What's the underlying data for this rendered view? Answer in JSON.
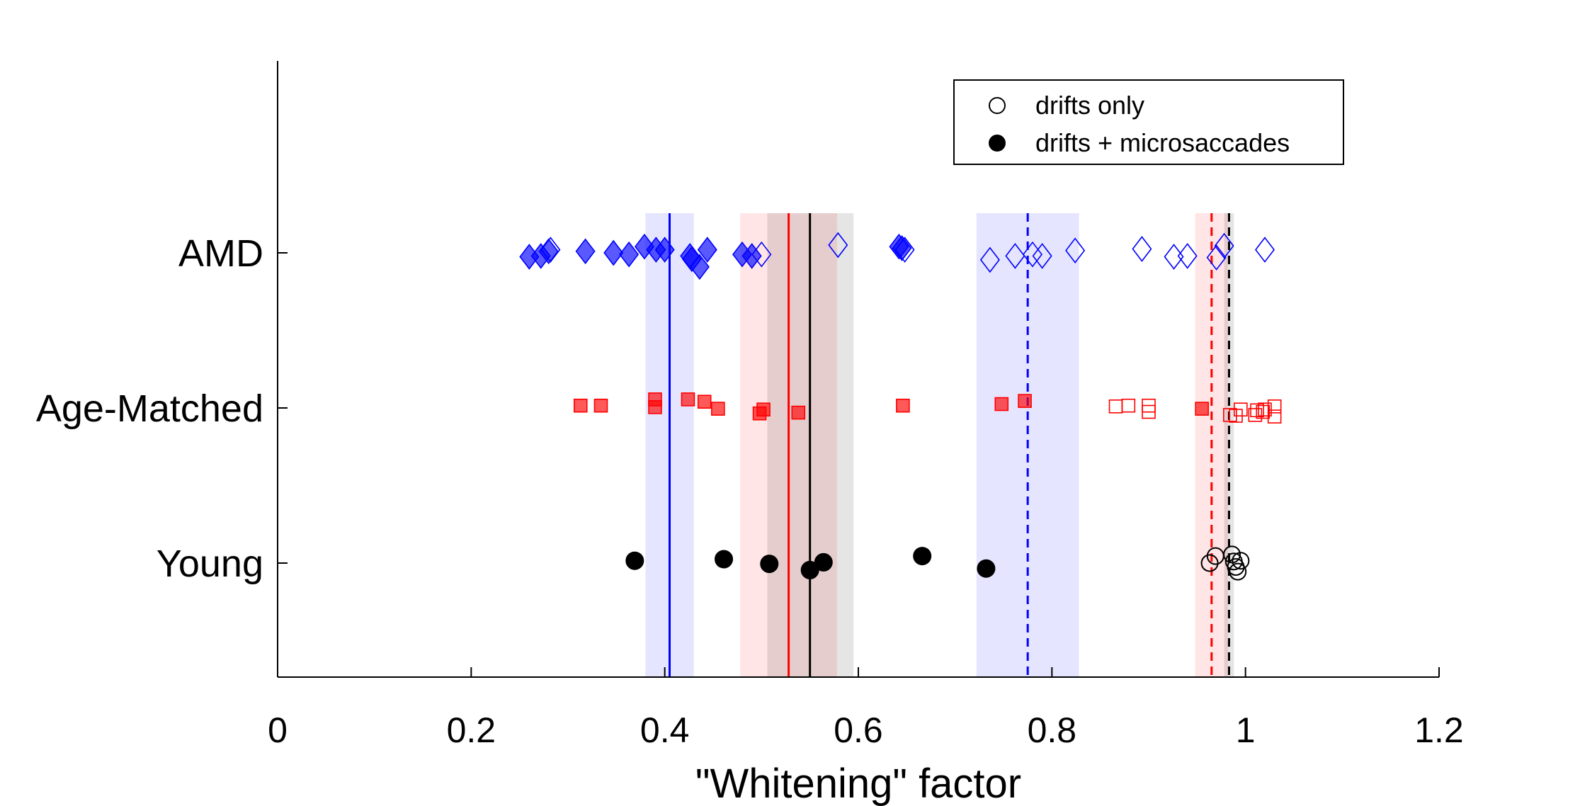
{
  "chart_data": {
    "type": "scatter",
    "title": "",
    "xlabel": "\"Whitening\" factor",
    "ylabel": "",
    "xlim": [
      0,
      1.2
    ],
    "xticks": [
      0,
      0.2,
      0.4,
      0.6,
      0.8,
      1,
      1.2
    ],
    "xtick_labels": [
      "0",
      "0.2",
      "0.4",
      "0.6",
      "0.8",
      "1",
      "1.2"
    ],
    "groups": [
      "AMD",
      "Age-Matched",
      "Young"
    ],
    "legend": {
      "placement": "top-right",
      "entries": [
        {
          "label": "drifts only",
          "marker": "open-circle"
        },
        {
          "label": "drifts + microsaccades",
          "marker": "filled-circle"
        }
      ]
    },
    "colors": {
      "AMD": "#0000ff",
      "Age-Matched": "#ff0000",
      "Young": "#000000"
    },
    "series": [
      {
        "group": "AMD",
        "condition": "drifts + microsaccades",
        "marker": "diamond",
        "filled": true,
        "points": [
          [
            0.26,
            -0.05
          ],
          [
            0.272,
            -0.04
          ],
          [
            0.28,
            0.02
          ],
          [
            0.318,
            0.02
          ],
          [
            0.347,
            0.0
          ],
          [
            0.363,
            -0.02
          ],
          [
            0.379,
            0.08
          ],
          [
            0.391,
            0.04
          ],
          [
            0.4,
            0.04
          ],
          [
            0.426,
            -0.04
          ],
          [
            0.428,
            -0.08
          ],
          [
            0.436,
            -0.18
          ],
          [
            0.444,
            0.04
          ],
          [
            0.48,
            -0.02
          ],
          [
            0.49,
            -0.04
          ],
          [
            0.642,
            0.08
          ],
          [
            0.645,
            0.06
          ]
        ]
      },
      {
        "group": "AMD",
        "condition": "drifts only",
        "marker": "diamond",
        "filled": false,
        "points": [
          [
            0.282,
            0.04
          ],
          [
            0.5,
            -0.02
          ],
          [
            0.579,
            0.1
          ],
          [
            0.648,
            0.04
          ],
          [
            0.736,
            -0.09
          ],
          [
            0.762,
            -0.04
          ],
          [
            0.78,
            -0.02
          ],
          [
            0.79,
            -0.04
          ],
          [
            0.824,
            0.03
          ],
          [
            0.893,
            0.05
          ],
          [
            0.926,
            -0.05
          ],
          [
            0.94,
            -0.04
          ],
          [
            0.97,
            -0.06
          ],
          [
            0.978,
            0.09
          ],
          [
            1.02,
            0.04
          ]
        ]
      },
      {
        "group": "Age-Matched",
        "condition": "drifts + microsaccades",
        "marker": "square",
        "filled": true,
        "points": [
          [
            0.313,
            0.03
          ],
          [
            0.334,
            0.03
          ],
          [
            0.39,
            0.11
          ],
          [
            0.39,
            0.01
          ],
          [
            0.424,
            0.11
          ],
          [
            0.441,
            0.08
          ],
          [
            0.455,
            -0.01
          ],
          [
            0.498,
            -0.07
          ],
          [
            0.502,
            -0.02
          ],
          [
            0.538,
            -0.06
          ],
          [
            0.646,
            0.03
          ],
          [
            0.748,
            0.05
          ],
          [
            0.772,
            0.09
          ],
          [
            0.955,
            -0.01
          ]
        ]
      },
      {
        "group": "Age-Matched",
        "condition": "drifts only",
        "marker": "square",
        "filled": false,
        "points": [
          [
            0.866,
            0.02
          ],
          [
            0.879,
            0.03
          ],
          [
            0.9,
            -0.05
          ],
          [
            0.9,
            0.03
          ],
          [
            0.984,
            -0.09
          ],
          [
            0.99,
            -0.1
          ],
          [
            0.995,
            -0.02
          ],
          [
            1.01,
            -0.09
          ],
          [
            1.012,
            -0.03
          ],
          [
            1.018,
            -0.05
          ],
          [
            1.02,
            -0.02
          ],
          [
            1.03,
            -0.11
          ],
          [
            1.03,
            0.02
          ]
        ]
      },
      {
        "group": "Young",
        "condition": "drifts + microsaccades",
        "marker": "circle",
        "filled": true,
        "points": [
          [
            0.369,
            0.03
          ],
          [
            0.461,
            0.05
          ],
          [
            0.508,
            -0.01
          ],
          [
            0.55,
            -0.09
          ],
          [
            0.564,
            0.01
          ],
          [
            0.666,
            0.09
          ],
          [
            0.732,
            -0.07
          ]
        ]
      },
      {
        "group": "Young",
        "condition": "drifts only",
        "marker": "circle",
        "filled": false,
        "points": [
          [
            0.963,
            0.0
          ],
          [
            0.969,
            0.09
          ],
          [
            0.986,
            0.11
          ],
          [
            0.988,
            0.02
          ],
          [
            0.99,
            -0.05
          ],
          [
            0.992,
            -0.11
          ],
          [
            0.995,
            0.03
          ]
        ]
      }
    ],
    "reference_lines": [
      {
        "group": "AMD",
        "condition": "drifts + microsaccades",
        "x": 0.405,
        "band": [
          0.38,
          0.43
        ],
        "style": "solid"
      },
      {
        "group": "AMD",
        "condition": "drifts only",
        "x": 0.775,
        "band": [
          0.722,
          0.828
        ],
        "style": "dashed"
      },
      {
        "group": "Age-Matched",
        "condition": "drifts + microsaccades",
        "x": 0.528,
        "band": [
          0.478,
          0.578
        ],
        "style": "solid"
      },
      {
        "group": "Age-Matched",
        "condition": "drifts only",
        "x": 0.965,
        "band": [
          0.948,
          0.982
        ],
        "style": "dashed"
      },
      {
        "group": "Young",
        "condition": "drifts + microsaccades",
        "x": 0.55,
        "band": [
          0.506,
          0.595
        ],
        "style": "solid"
      },
      {
        "group": "Young",
        "condition": "drifts only",
        "x": 0.983,
        "band": [
          0.978,
          0.988
        ],
        "style": "dashed"
      }
    ]
  }
}
